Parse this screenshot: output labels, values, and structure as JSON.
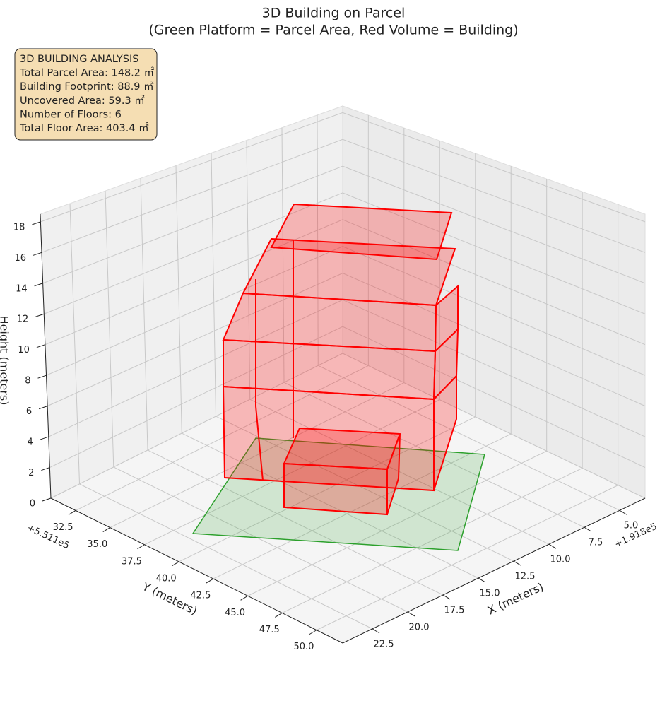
{
  "chart_data": {
    "type": "bar3d",
    "title": "3D Building on Parcel",
    "subtitle": "(Green Platform = Parcel Area, Red Volume = Building)",
    "xlabel": "X (meters)",
    "ylabel": "Y (meters)",
    "zlabel": "Height (meters)",
    "x_offset": "+1.918e5",
    "y_offset": "+5.511e5",
    "xlim": [
      3.2,
      24.6
    ],
    "xticks": [
      {
        "value": 5,
        "label": "5.0"
      },
      7.5,
      {
        "value": 10,
        "label": "10.0"
      },
      12.5,
      {
        "value": 15,
        "label": "15.0"
      },
      17.5,
      {
        "value": 20,
        "label": "20.0"
      },
      22.5
    ],
    "ylim": [
      30.7,
      51.9
    ],
    "yticks": [
      32.5,
      {
        "value": 35,
        "label": "35.0"
      },
      37.5,
      {
        "value": 40,
        "label": "40.0"
      },
      42.5,
      {
        "value": 45,
        "label": "45.0"
      },
      47.5,
      {
        "value": 50,
        "label": "50.0"
      }
    ],
    "zlim": [
      0,
      18.5
    ],
    "zticks": [
      0,
      2,
      4,
      6,
      8,
      10,
      12,
      14,
      16,
      18
    ],
    "grid": true,
    "platform_color": "#2ca02c",
    "building_color": "#ff0000",
    "info_box": [
      "3D BUILDING ANALYSIS",
      "Total Parcel Area: 148.2 ㎡",
      "Building Footprint: 88.9 ㎡",
      "Uncovered Area: 59.3 ㎡",
      "Number of Floors: 6",
      "Total Floor Area: 403.4 ㎡"
    ]
  }
}
